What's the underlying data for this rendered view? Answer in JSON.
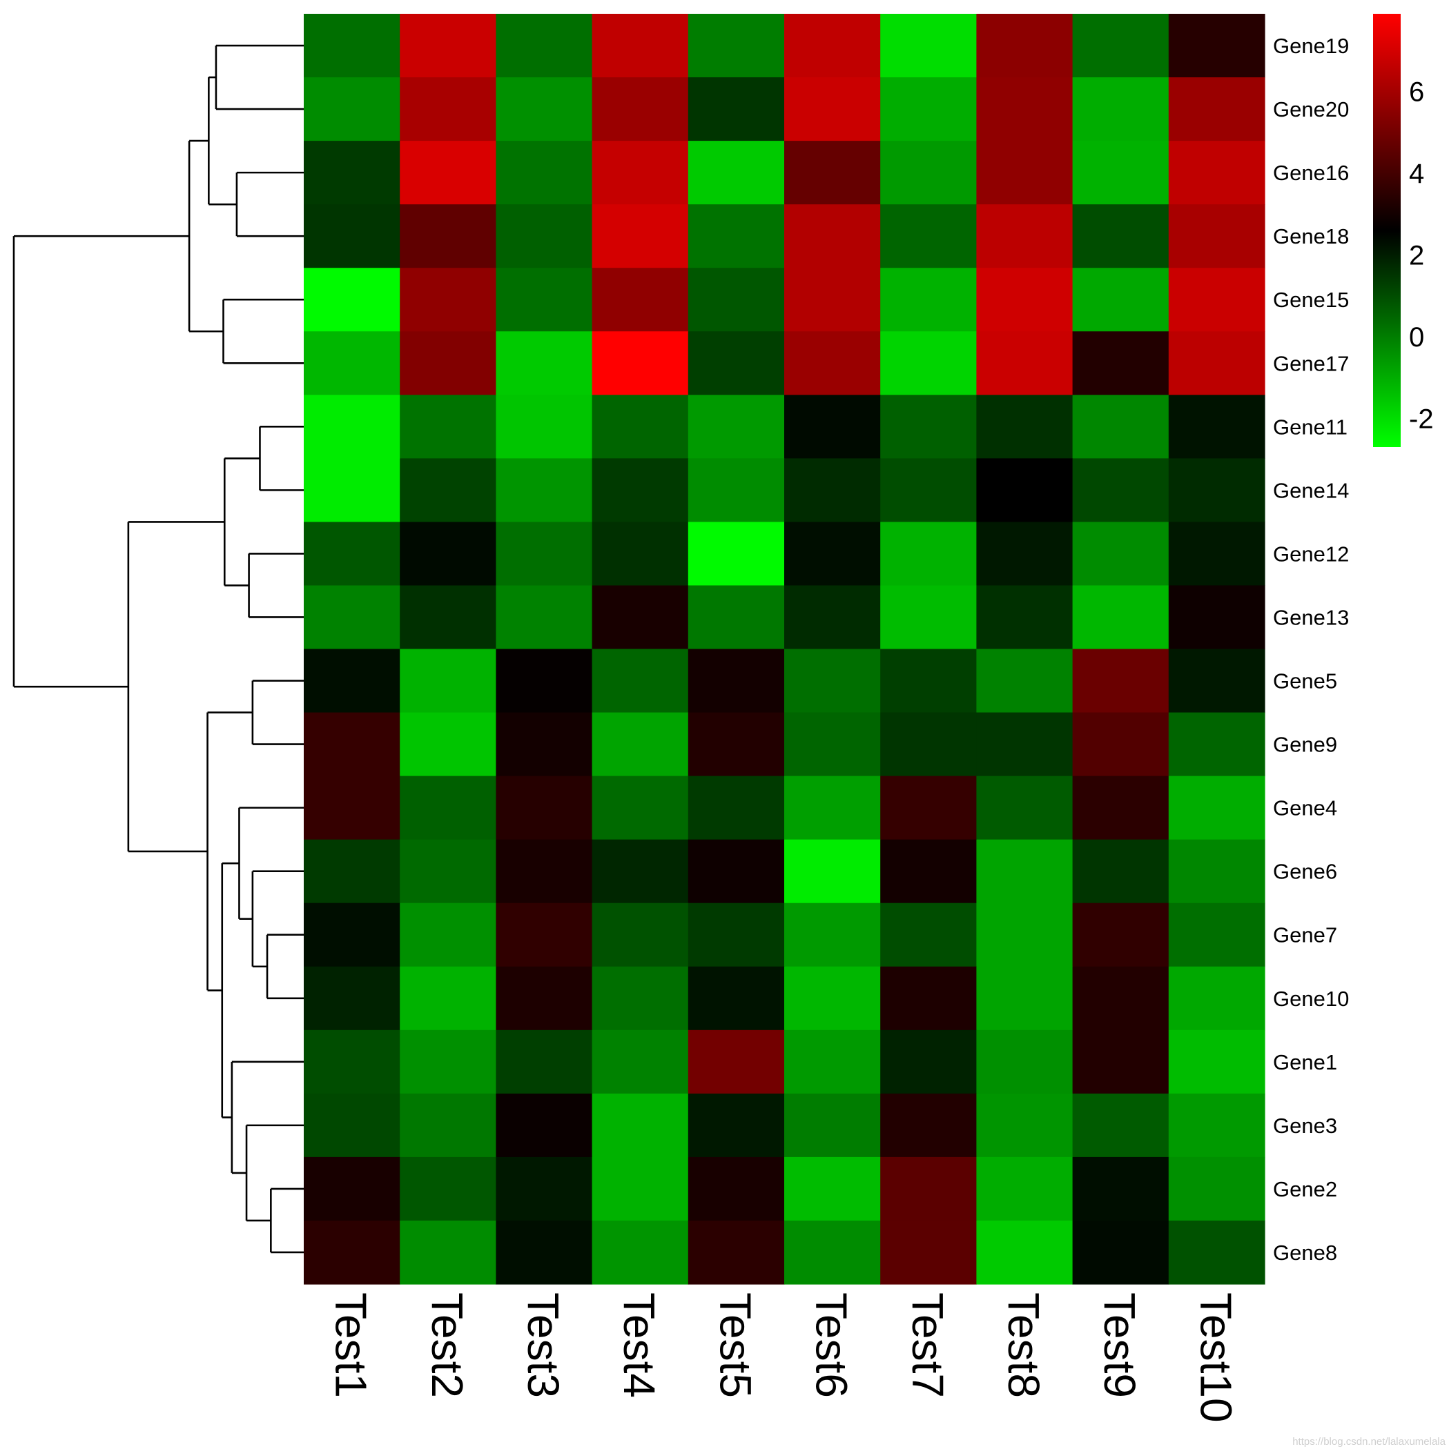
{
  "chart_data": {
    "type": "heatmap",
    "columns": [
      "Test1",
      "Test2",
      "Test3",
      "Test4",
      "Test5",
      "Test6",
      "Test7",
      "Test8",
      "Test9",
      "Test10"
    ],
    "rows": [
      "Gene19",
      "Gene20",
      "Gene16",
      "Gene18",
      "Gene15",
      "Gene17",
      "Gene11",
      "Gene14",
      "Gene12",
      "Gene13",
      "Gene5",
      "Gene9",
      "Gene4",
      "Gene6",
      "Gene7",
      "Gene10",
      "Gene1",
      "Gene3",
      "Gene2",
      "Gene8"
    ],
    "values": [
      [
        0.3,
        6.8,
        0.3,
        6.6,
        0.0,
        6.6,
        -2.0,
        5.5,
        0.3,
        3.4
      ],
      [
        -0.3,
        6.1,
        -0.4,
        5.8,
        1.5,
        6.8,
        -1.0,
        5.6,
        -1.0,
        5.8
      ],
      [
        1.4,
        7.1,
        0.2,
        6.7,
        -1.6,
        4.7,
        -0.6,
        5.6,
        -1.1,
        6.6
      ],
      [
        1.5,
        4.6,
        0.6,
        7.0,
        0.2,
        6.3,
        0.5,
        6.5,
        1.0,
        6.1
      ],
      [
        -2.6,
        5.6,
        0.3,
        5.6,
        0.8,
        6.3,
        -1.1,
        6.9,
        -0.9,
        6.8
      ],
      [
        -1.2,
        5.3,
        -1.6,
        7.9,
        1.3,
        5.8,
        -1.8,
        6.8,
        3.3,
        6.5
      ],
      [
        -2.3,
        0.2,
        -1.5,
        0.5,
        -0.6,
        2.4,
        0.6,
        1.6,
        -0.2,
        2.2
      ],
      [
        -2.3,
        1.2,
        -0.5,
        1.4,
        -0.3,
        1.7,
        1.0,
        2.6,
        1.1,
        1.7
      ],
      [
        0.8,
        2.4,
        0.3,
        1.6,
        -2.6,
        2.3,
        -1.1,
        2.1,
        -0.3,
        2.1
      ],
      [
        -0.1,
        1.6,
        -0.1,
        3.1,
        0.1,
        1.7,
        -1.3,
        1.6,
        -1.2,
        2.9
      ],
      [
        2.3,
        -1.1,
        2.7,
        0.5,
        3.0,
        0.3,
        1.3,
        -0.1,
        4.8,
        2.1
      ],
      [
        3.7,
        -1.5,
        3.0,
        -0.8,
        3.3,
        0.5,
        1.5,
        1.5,
        4.3,
        0.5
      ],
      [
        3.7,
        0.6,
        3.4,
        0.4,
        1.4,
        -0.7,
        3.7,
        0.7,
        3.5,
        -1.0
      ],
      [
        1.4,
        0.4,
        3.1,
        1.8,
        2.9,
        -2.3,
        3.0,
        -0.8,
        1.5,
        -0.2
      ],
      [
        2.3,
        -0.4,
        3.6,
        0.9,
        1.4,
        -0.6,
        1.0,
        -0.8,
        3.6,
        0.3
      ],
      [
        1.9,
        -1.1,
        3.2,
        0.3,
        2.2,
        -1.2,
        3.2,
        -0.8,
        3.3,
        -0.9
      ],
      [
        1.0,
        -0.4,
        1.3,
        -0.1,
        5.0,
        -0.6,
        1.9,
        -0.4,
        3.3,
        -1.3
      ],
      [
        1.1,
        0.1,
        2.8,
        -1.1,
        2.1,
        0.0,
        3.3,
        -0.5,
        0.7,
        -0.6
      ],
      [
        3.1,
        0.8,
        2.1,
        -1.1,
        3.1,
        -1.3,
        4.5,
        -1.0,
        2.3,
        -0.4
      ],
      [
        3.5,
        -0.3,
        2.3,
        -0.5,
        3.5,
        -0.3,
        4.5,
        -1.6,
        2.4,
        0.9
      ]
    ],
    "color_scale": {
      "low": "#00ff00",
      "mid": "#000000",
      "high": "#ff0000",
      "min": -2.7,
      "max": 7.9,
      "mid_value": 2.6,
      "ticks": [
        -2,
        0,
        2,
        4,
        6
      ],
      "tick_labels": [
        "-2",
        "0",
        "2",
        "4",
        "6"
      ]
    },
    "legend_placement": "top-right",
    "row_dendrogram": true,
    "row_dendrogram_order": [
      "Gene19",
      "Gene20",
      "Gene16",
      "Gene18",
      "Gene15",
      "Gene17",
      "Gene11",
      "Gene14",
      "Gene12",
      "Gene13",
      "Gene5",
      "Gene9",
      "Gene4",
      "Gene6",
      "Gene7",
      "Gene10",
      "Gene1",
      "Gene3",
      "Gene2",
      "Gene8"
    ],
    "row_dendrogram_merges": [
      [
        "Gene19",
        "Gene20",
        0.72
      ],
      [
        "Gene16",
        "Gene18",
        0.55
      ],
      [
        "m0",
        "m1",
        0.78
      ],
      [
        "Gene15",
        "Gene17",
        0.66
      ],
      [
        "m2",
        "m3",
        0.94
      ],
      [
        "Gene11",
        "Gene14",
        0.36
      ],
      [
        "Gene12",
        "Gene13",
        0.45
      ],
      [
        "m5",
        "m6",
        0.65
      ],
      [
        "Gene5",
        "Gene9",
        0.42
      ],
      [
        "Gene7",
        "Gene10",
        0.3
      ],
      [
        "Gene6",
        "m9",
        0.42
      ],
      [
        "Gene4",
        "m10",
        0.53
      ],
      [
        "Gene2",
        "Gene8",
        0.27
      ],
      [
        "Gene3",
        "m12",
        0.47
      ],
      [
        "Gene1",
        "m13",
        0.59
      ],
      [
        "m11",
        "m14",
        0.67
      ],
      [
        "m8",
        "m15",
        0.79
      ],
      [
        "m7",
        "m16",
        1.44
      ],
      [
        "m4",
        "m17",
        2.38
      ]
    ],
    "watermark": "https://blog.csdn.net/lalaxumelala"
  }
}
